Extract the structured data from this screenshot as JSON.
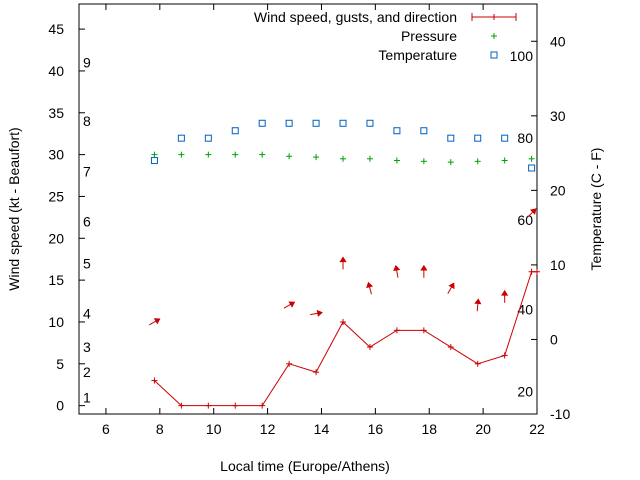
{
  "chart_data": {
    "type": "line",
    "xlabel": "Local time (Europe/Athens)",
    "ylabel": "Wind speed (kt - Beaufort)",
    "y2label": "Temperature (C - F)",
    "xlim": [
      5,
      22
    ],
    "ylim": [
      -1,
      48
    ],
    "y2lim": [
      -10,
      45
    ],
    "xticks": [
      6,
      8,
      10,
      12,
      14,
      16,
      18,
      20,
      22
    ],
    "yticks": [
      0,
      5,
      10,
      15,
      20,
      25,
      30,
      35,
      40,
      45
    ],
    "y2ticks": [
      -10,
      0,
      10,
      20,
      30,
      40
    ],
    "beaufort_labels": [
      {
        "text": "1",
        "y": 1
      },
      {
        "text": "2",
        "y": 4
      },
      {
        "text": "3",
        "y": 7
      },
      {
        "text": "4",
        "y": 11
      },
      {
        "text": "5",
        "y": 17
      },
      {
        "text": "6",
        "y": 22
      },
      {
        "text": "7",
        "y": 28
      },
      {
        "text": "8",
        "y": 34
      },
      {
        "text": "9",
        "y": 41
      }
    ],
    "fahrenheit_labels": [
      {
        "text": "20",
        "y2": -7
      },
      {
        "text": "40",
        "y2": 4
      },
      {
        "text": "60",
        "y2": 16
      },
      {
        "text": "80",
        "y2": 27
      },
      {
        "text": "100",
        "y2": 38
      }
    ],
    "legend": [
      {
        "label": "Wind speed, gusts, and direction",
        "color": "#cc0000",
        "marker": "line-plus"
      },
      {
        "label": "Pressure",
        "color": "#00a000",
        "marker": "plus"
      },
      {
        "label": "Temperature",
        "color": "#0060c0",
        "marker": "square"
      }
    ],
    "series": [
      {
        "name": "Wind speed, gusts, and direction",
        "color": "#cc0000",
        "x": [
          7.8,
          8.8,
          9.8,
          10.8,
          11.8,
          12.8,
          13.8,
          14.8,
          15.8,
          16.8,
          17.8,
          18.8,
          19.8,
          20.8,
          21.8,
          22
        ],
        "y": [
          3,
          0,
          0,
          0,
          0,
          5,
          4,
          10,
          7,
          9,
          9,
          7,
          5,
          6,
          16,
          16
        ],
        "arrow_angles_deg": [
          -30,
          null,
          null,
          null,
          null,
          -30,
          -10,
          -90,
          -105,
          -100,
          -90,
          -60,
          -85,
          -90,
          -45,
          null
        ]
      },
      {
        "name": "Pressure",
        "color": "#00a000",
        "x": [
          7.8,
          8.8,
          9.8,
          10.8,
          11.8,
          12.8,
          13.8,
          14.8,
          15.8,
          16.8,
          17.8,
          18.8,
          19.8,
          20.8,
          21.8
        ],
        "y": [
          30,
          30,
          30,
          30,
          30,
          29.8,
          29.7,
          29.5,
          29.5,
          29.3,
          29.2,
          29.1,
          29.2,
          29.3,
          29.5
        ]
      },
      {
        "name": "Temperature",
        "color": "#0060c0",
        "axis": "y2",
        "x": [
          7.8,
          8.8,
          9.8,
          10.8,
          11.8,
          12.8,
          13.8,
          14.8,
          15.8,
          16.8,
          17.8,
          18.8,
          19.8,
          20.8,
          21.8
        ],
        "y": [
          24,
          27,
          27,
          28,
          29,
          29,
          29,
          29,
          29,
          28,
          28,
          27,
          27,
          27,
          23
        ]
      }
    ]
  }
}
